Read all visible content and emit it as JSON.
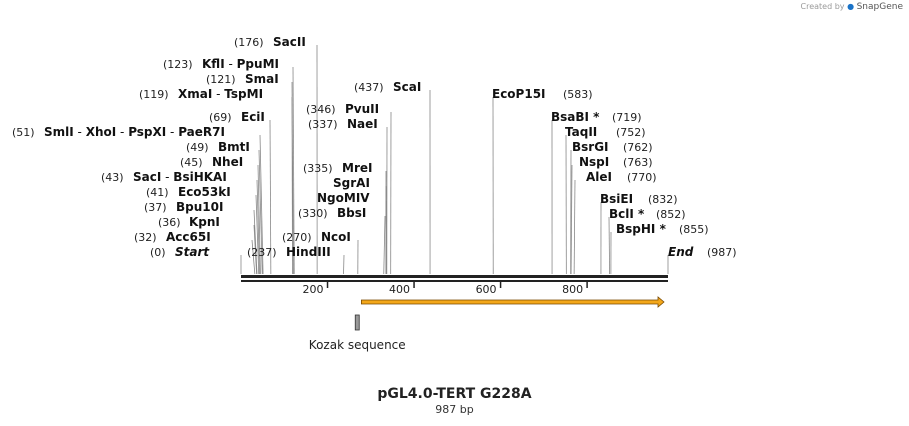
{
  "credit": {
    "created_by": "Created by",
    "brand": "SnapGene"
  },
  "title": "pGL4.0-TERT G228A",
  "subtitle": "987 bp",
  "sequence_length": 987,
  "colors": {
    "backbone": "#222222",
    "feature_arrow": "#f3a71a",
    "kozak_box": "#999999",
    "tick_line": "#888888"
  },
  "axis_ticks": [
    {
      "label": "200",
      "value": 200
    },
    {
      "label": "400",
      "value": 400
    },
    {
      "label": "600",
      "value": 600
    },
    {
      "label": "800",
      "value": 800
    }
  ],
  "features": [
    {
      "name": "kozak",
      "label": "Kozak sequence",
      "start": 271,
      "end": 281
    },
    {
      "name": "orf",
      "label": "",
      "start": 276,
      "end": 987
    }
  ],
  "enzymes": [
    {
      "pos": "(0)",
      "names": [
        "Start"
      ],
      "italic": true,
      "site": 0
    },
    {
      "pos": "(32)",
      "names": [
        "Acc65I"
      ],
      "site": 32
    },
    {
      "pos": "(36)",
      "names": [
        "KpnI"
      ],
      "site": 36
    },
    {
      "pos": "(37)",
      "names": [
        "Bpu10I"
      ],
      "site": 37
    },
    {
      "pos": "(41)",
      "names": [
        "Eco53kI"
      ],
      "site": 41
    },
    {
      "pos": "(43)",
      "names": [
        "SacI",
        "BsiHKAI"
      ],
      "site": 43
    },
    {
      "pos": "(45)",
      "names": [
        "NheI"
      ],
      "site": 45
    },
    {
      "pos": "(49)",
      "names": [
        "BmtI"
      ],
      "site": 49
    },
    {
      "pos": "(51)",
      "names": [
        "SmlI",
        "XhoI",
        "PspXI",
        "PaeR7I"
      ],
      "site": 51
    },
    {
      "pos": "(69)",
      "names": [
        "EciI"
      ],
      "site": 69
    },
    {
      "pos": "(119)",
      "names": [
        "XmaI",
        "TspMI"
      ],
      "site": 119
    },
    {
      "pos": "(121)",
      "names": [
        "SmaI"
      ],
      "site": 121
    },
    {
      "pos": "(123)",
      "names": [
        "KflI",
        "PpuMI"
      ],
      "site": 123
    },
    {
      "pos": "(176)",
      "names": [
        "SacII"
      ],
      "site": 176
    },
    {
      "pos": "(237)",
      "names": [
        "HindIII"
      ],
      "site": 237
    },
    {
      "pos": "(270)",
      "names": [
        "NcoI"
      ],
      "site": 270
    },
    {
      "pos": "(330)",
      "names": [
        "BbsI"
      ],
      "site": 330
    },
    {
      "pos": "",
      "names": [
        "NgoMIV"
      ],
      "site": 335
    },
    {
      "pos": "",
      "names": [
        "SgrAI"
      ],
      "site": 335
    },
    {
      "pos": "(335)",
      "names": [
        "MreI"
      ],
      "site": 335
    },
    {
      "pos": "(337)",
      "names": [
        "NaeI"
      ],
      "site": 337
    },
    {
      "pos": "(346)",
      "names": [
        "PvuII"
      ],
      "site": 346
    },
    {
      "pos": "(437)",
      "names": [
        "ScaI"
      ],
      "site": 437
    },
    {
      "pos": "(583)",
      "names": [
        "EcoP15I"
      ],
      "site": 583
    },
    {
      "pos": "(719)",
      "names": [
        "BsaBI *"
      ],
      "site": 719
    },
    {
      "pos": "(752)",
      "names": [
        "TaqII"
      ],
      "site": 752
    },
    {
      "pos": "(762)",
      "names": [
        "BsrGI"
      ],
      "site": 762
    },
    {
      "pos": "(763)",
      "names": [
        "NspI"
      ],
      "site": 763
    },
    {
      "pos": "(770)",
      "names": [
        "AleI"
      ],
      "site": 770
    },
    {
      "pos": "(832)",
      "names": [
        "BsiEI"
      ],
      "site": 832
    },
    {
      "pos": "(852)",
      "names": [
        "BclI *"
      ],
      "site": 852
    },
    {
      "pos": "(855)",
      "names": [
        "BspHI *"
      ],
      "site": 855
    },
    {
      "pos": "(987)",
      "names": [
        "End"
      ],
      "italic": true,
      "site": 987
    }
  ]
}
